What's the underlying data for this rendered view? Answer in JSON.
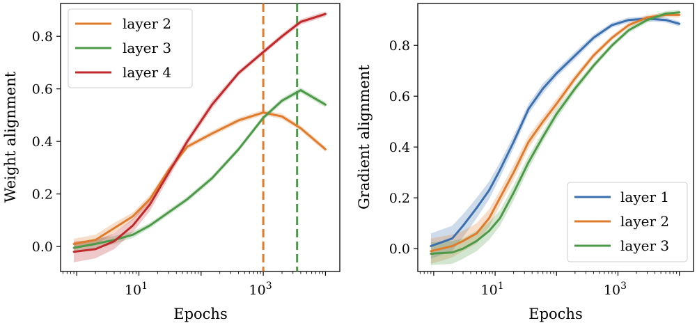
{
  "chart_data": [
    {
      "type": "line",
      "xlabel": "Epochs",
      "ylabel": "Weight alignment",
      "xscale": "log",
      "xlim": [
        0.55,
        17000
      ],
      "ylim": [
        -0.095,
        0.925
      ],
      "x_ticks": [
        {
          "value": 10,
          "base": "10",
          "exp": "1"
        },
        {
          "value": 1000,
          "base": "10",
          "exp": "3"
        }
      ],
      "y_ticks": [
        "0.0",
        "0.2",
        "0.4",
        "0.6",
        "0.8"
      ],
      "legend": {
        "position": "top-left"
      },
      "vlines": [
        {
          "x": 1000,
          "color": "#e07b2b",
          "style": "dashed"
        },
        {
          "x": 3500,
          "color": "#4c9a47",
          "style": "dashed"
        }
      ],
      "series": [
        {
          "name": "layer 2",
          "color": "#e07b2b",
          "x": [
            0.9,
            2,
            4,
            8,
            15,
            30,
            60,
            150,
            400,
            1000,
            2000,
            4000,
            10000
          ],
          "y": [
            0.01,
            0.025,
            0.07,
            0.115,
            0.18,
            0.29,
            0.38,
            0.43,
            0.48,
            0.51,
            0.495,
            0.45,
            0.37
          ],
          "band": [
            0.02,
            0.02,
            0.02,
            0.015,
            0.015,
            0.012,
            0.01,
            0.01,
            0.01,
            0.01,
            0.01,
            0.01,
            0.01
          ]
        },
        {
          "name": "layer 3",
          "color": "#4c9a47",
          "x": [
            0.9,
            2,
            4,
            8,
            15,
            30,
            60,
            150,
            400,
            1000,
            2000,
            4000,
            10000
          ],
          "y": [
            -0.005,
            0.01,
            0.025,
            0.045,
            0.08,
            0.13,
            0.18,
            0.26,
            0.37,
            0.49,
            0.555,
            0.595,
            0.54
          ],
          "band": [
            0.02,
            0.02,
            0.015,
            0.012,
            0.01,
            0.01,
            0.01,
            0.01,
            0.01,
            0.01,
            0.01,
            0.01,
            0.01
          ]
        },
        {
          "name": "layer 4",
          "color": "#c0282a",
          "x": [
            0.9,
            2,
            4,
            8,
            15,
            30,
            60,
            150,
            400,
            1000,
            2000,
            4000,
            10000
          ],
          "y": [
            -0.02,
            -0.01,
            0.02,
            0.08,
            0.16,
            0.28,
            0.4,
            0.54,
            0.66,
            0.74,
            0.8,
            0.855,
            0.885
          ],
          "band": [
            0.04,
            0.035,
            0.03,
            0.025,
            0.025,
            0.02,
            0.015,
            0.015,
            0.01,
            0.01,
            0.01,
            0.01,
            0.01
          ]
        }
      ]
    },
    {
      "type": "line",
      "xlabel": "Epochs",
      "ylabel": "Gradient alignment",
      "xscale": "log",
      "xlim": [
        0.55,
        17000
      ],
      "ylim": [
        -0.09,
        0.965
      ],
      "x_ticks": [
        {
          "value": 10,
          "base": "10",
          "exp": "1"
        },
        {
          "value": 1000,
          "base": "10",
          "exp": "3"
        }
      ],
      "y_ticks": [
        "0.0",
        "0.2",
        "0.4",
        "0.6",
        "0.8"
      ],
      "legend": {
        "position": "bottom-right"
      },
      "series": [
        {
          "name": "layer 1",
          "color": "#3a6fb0",
          "x": [
            0.9,
            2,
            3,
            5,
            8,
            12,
            20,
            35,
            60,
            100,
            200,
            400,
            800,
            1500,
            3000,
            6000,
            10000
          ],
          "y": [
            0.01,
            0.04,
            0.09,
            0.16,
            0.23,
            0.31,
            0.42,
            0.55,
            0.63,
            0.69,
            0.76,
            0.83,
            0.88,
            0.9,
            0.905,
            0.9,
            0.885
          ],
          "band": [
            0.05,
            0.05,
            0.045,
            0.04,
            0.035,
            0.03,
            0.025,
            0.02,
            0.02,
            0.015,
            0.015,
            0.012,
            0.01,
            0.01,
            0.01,
            0.01,
            0.01
          ]
        },
        {
          "name": "layer 2",
          "color": "#e07b2b",
          "x": [
            0.9,
            2,
            3,
            5,
            8,
            12,
            20,
            35,
            60,
            100,
            200,
            400,
            800,
            1500,
            3000,
            6000,
            10000
          ],
          "y": [
            -0.01,
            0.01,
            0.03,
            0.06,
            0.12,
            0.2,
            0.3,
            0.42,
            0.5,
            0.57,
            0.67,
            0.76,
            0.83,
            0.88,
            0.91,
            0.92,
            0.92
          ],
          "band": [
            0.05,
            0.045,
            0.04,
            0.04,
            0.035,
            0.03,
            0.03,
            0.025,
            0.02,
            0.02,
            0.015,
            0.012,
            0.01,
            0.01,
            0.01,
            0.01,
            0.01
          ]
        },
        {
          "name": "layer 3",
          "color": "#4c9a47",
          "x": [
            0.9,
            2,
            3,
            5,
            8,
            12,
            20,
            35,
            60,
            100,
            200,
            400,
            800,
            1500,
            3000,
            6000,
            10000
          ],
          "y": [
            -0.02,
            -0.015,
            0.0,
            0.03,
            0.07,
            0.12,
            0.22,
            0.34,
            0.44,
            0.53,
            0.63,
            0.72,
            0.8,
            0.86,
            0.9,
            0.925,
            0.93
          ],
          "band": [
            0.045,
            0.045,
            0.04,
            0.04,
            0.035,
            0.03,
            0.03,
            0.025,
            0.02,
            0.02,
            0.015,
            0.012,
            0.01,
            0.01,
            0.01,
            0.01,
            0.01
          ]
        }
      ]
    }
  ]
}
